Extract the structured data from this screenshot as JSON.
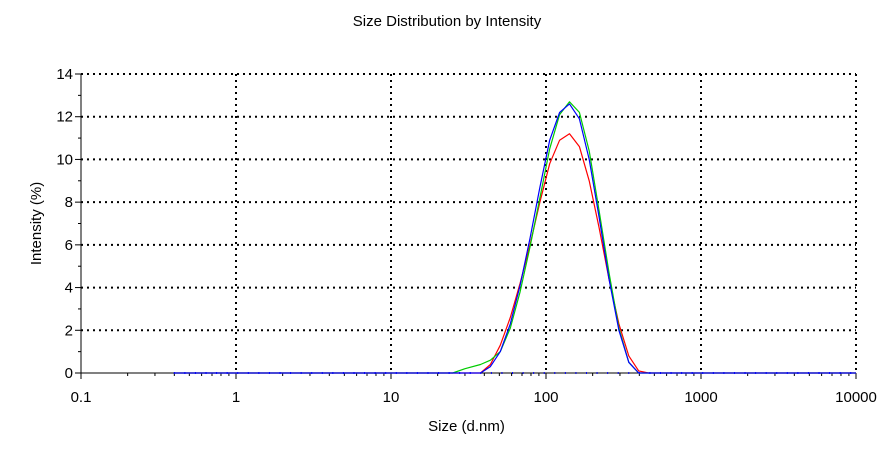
{
  "chart_data": {
    "type": "line",
    "title": "Size Distribution by Intensity",
    "xlabel": "Size (d.nm)",
    "ylabel": "Intensity (%)",
    "x_scale": "log",
    "xlim": [
      0.1,
      10000
    ],
    "ylim": [
      0,
      14
    ],
    "x_ticks": [
      0.1,
      1,
      10,
      100,
      1000,
      10000
    ],
    "x_tick_labels": [
      "0.1",
      "1",
      "10",
      "100",
      "1000",
      "10000"
    ],
    "y_ticks": [
      0,
      2,
      4,
      6,
      8,
      10,
      12,
      14
    ],
    "y_tick_labels": [
      "0",
      "2",
      "4",
      "6",
      "8",
      "10",
      "12",
      "14"
    ],
    "grid": true,
    "legend": "none",
    "series": [
      {
        "color": "#ff0000",
        "x": [
          0.4,
          1,
          10,
          30,
          37.8,
          43.8,
          50.7,
          58.8,
          68.1,
          78.8,
          91.3,
          105.7,
          122.4,
          141.8,
          164.2,
          190.1,
          220.2,
          255,
          295.3,
          342,
          396.1,
          458.7,
          531.2,
          10000
        ],
        "y": [
          0,
          0,
          0,
          0,
          0,
          0.4,
          1.3,
          2.6,
          4.2,
          6.0,
          8.0,
          9.8,
          10.9,
          11.2,
          10.6,
          9.0,
          6.8,
          4.4,
          2.3,
          0.8,
          0.1,
          0,
          0,
          0
        ]
      },
      {
        "color": "#00cc00",
        "x": [
          0.4,
          1,
          10,
          25,
          30,
          37.8,
          43.8,
          50.7,
          58.8,
          68.1,
          78.8,
          91.3,
          105.7,
          122.4,
          141.8,
          164.2,
          190.1,
          220.2,
          255,
          295.3,
          342,
          396.1,
          458.7,
          10000
        ],
        "y": [
          0,
          0,
          0,
          0,
          0.2,
          0.4,
          0.6,
          1.0,
          2.1,
          3.8,
          5.9,
          8.2,
          10.5,
          12.1,
          12.7,
          12.2,
          10.4,
          7.6,
          4.7,
          2.1,
          0.5,
          0,
          0,
          0
        ]
      },
      {
        "color": "#0000ff",
        "x": [
          0.4,
          1,
          10,
          30,
          37.8,
          43.8,
          50.7,
          58.8,
          68.1,
          78.8,
          91.3,
          105.7,
          122.4,
          141.8,
          164.2,
          190.1,
          220.2,
          255,
          295.3,
          342,
          396.1,
          458.7,
          10000
        ],
        "y": [
          0,
          0,
          0,
          0,
          0,
          0.3,
          1.0,
          2.3,
          4.1,
          6.3,
          8.7,
          10.9,
          12.2,
          12.6,
          11.9,
          10.0,
          7.3,
          4.4,
          2.0,
          0.5,
          0,
          0,
          0
        ]
      }
    ]
  }
}
